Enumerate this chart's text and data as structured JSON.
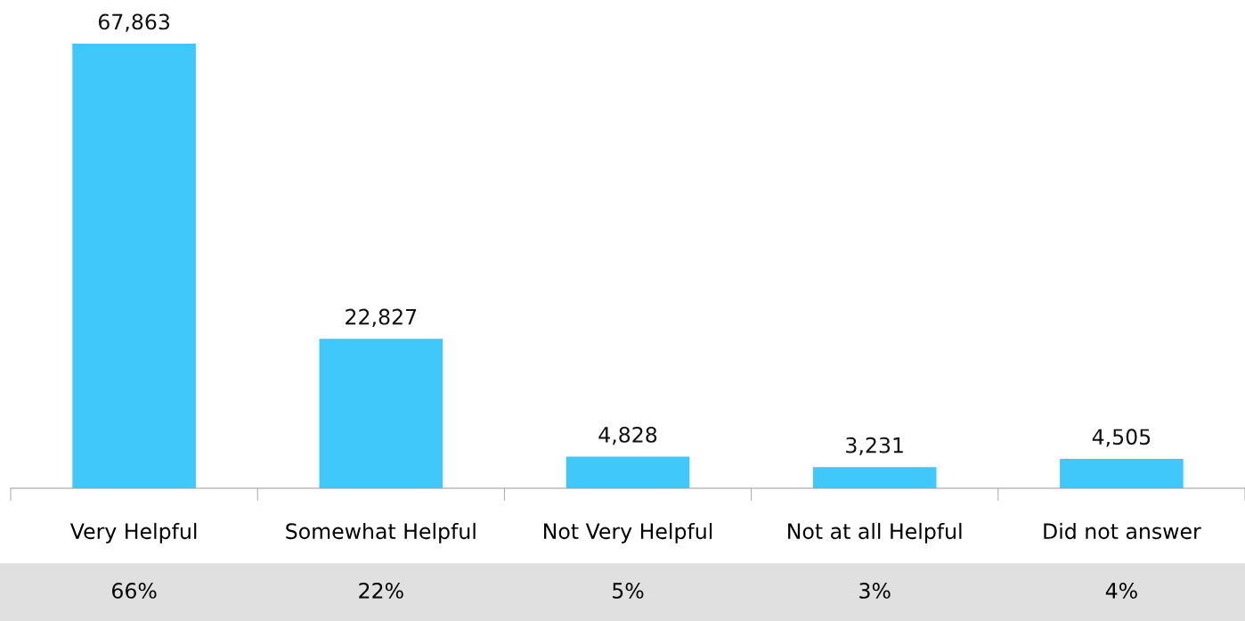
{
  "chart_data": {
    "type": "bar",
    "categories": [
      "Very Helpful",
      "Somewhat Helpful",
      "Not Very Helpful",
      "Not at all Helpful",
      "Did not answer"
    ],
    "values": [
      67863,
      22827,
      4828,
      3231,
      4505
    ],
    "value_labels": [
      "67,863",
      "22,827",
      "4,828",
      "3,231",
      "4,505"
    ],
    "color": "#40c8fb",
    "annotations": [
      "66%",
      "22%",
      "5%",
      "3%",
      "4%"
    ],
    "grid": false,
    "legend": false
  }
}
